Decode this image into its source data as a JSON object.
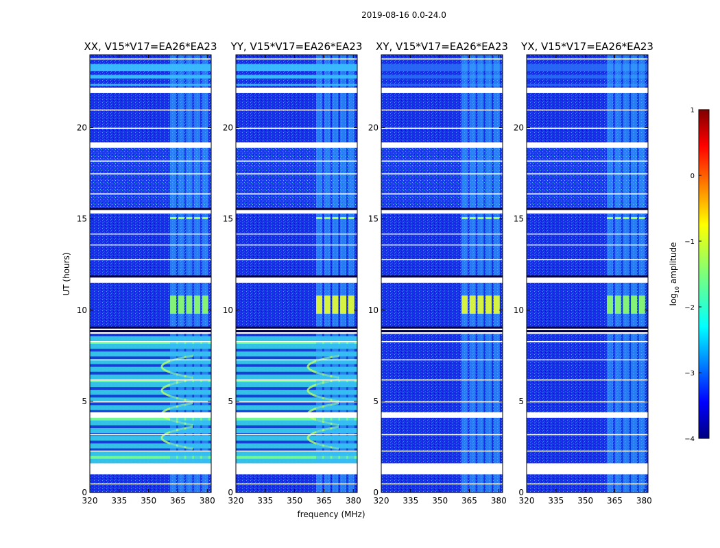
{
  "chart_data": {
    "type": "heatmap",
    "suptitle": "2019-08-16 0.0-24.0",
    "xlabel": "frequency (MHz)",
    "ylabel": "UT (hours)",
    "xlim": [
      320,
      382
    ],
    "ylim": [
      0,
      24
    ],
    "xticks": [
      320,
      335,
      350,
      365,
      380
    ],
    "yticks": [
      0,
      5,
      10,
      15,
      20
    ],
    "panels": [
      {
        "title": "XX, V15*V17=EA26*EA23",
        "pol": "XX"
      },
      {
        "title": "YY, V15*V17=EA26*EA23",
        "pol": "YY"
      },
      {
        "title": "XY, V15*V17=EA26*EA23",
        "pol": "XY"
      },
      {
        "title": "YX, V15*V17=EA26*EA23",
        "pol": "YX"
      }
    ],
    "colorbar": {
      "label_prefix": "log",
      "label_sub": "10",
      "label_suffix": " amplitude",
      "range": [
        -4,
        1
      ],
      "ticks": [
        "1",
        "0",
        "−1",
        "−2",
        "−3",
        "−4"
      ],
      "colormap": "jet"
    },
    "rfi_band_mhz": [
      361,
      379
    ],
    "flagged_hours": [
      1.0,
      1.6,
      4.1,
      4.4,
      8.7,
      9.0,
      11.5,
      11.8,
      15.3,
      15.5,
      18.9,
      19.2,
      21.9,
      22.2
    ]
  }
}
